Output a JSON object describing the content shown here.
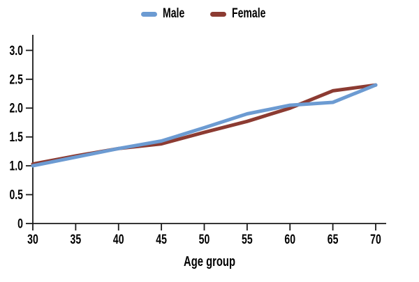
{
  "figure": {
    "background": "#ffffff"
  },
  "chart_data": {
    "type": "line",
    "title": "",
    "xlabel": "Age group",
    "ylabel": "",
    "x": [
      30,
      35,
      40,
      45,
      50,
      55,
      60,
      65,
      70
    ],
    "series": [
      {
        "name": "Male",
        "color": "#6C9BD2",
        "values": [
          1.0,
          1.15,
          1.3,
          1.43,
          1.66,
          1.9,
          2.05,
          2.1,
          2.4
        ]
      },
      {
        "name": "Female",
        "color": "#8C3B32",
        "values": [
          1.03,
          1.17,
          1.3,
          1.38,
          1.58,
          1.77,
          2.0,
          2.3,
          2.4
        ]
      }
    ],
    "xlim": [
      30,
      70
    ],
    "ylim": [
      0,
      3.27
    ],
    "xticks": [
      30,
      35,
      40,
      45,
      50,
      55,
      60,
      65,
      70
    ],
    "xtick_labels": [
      "30",
      "35",
      "40",
      "45",
      "50",
      "55",
      "60",
      "65",
      "70"
    ],
    "yticks": [
      0,
      0.5,
      1,
      1.5,
      2,
      2.5,
      3
    ],
    "ytick_labels": [
      "0",
      "0.5",
      "1.0",
      "1.5",
      "2.0",
      "2.5",
      "3.0"
    ],
    "legend_position": "top-center",
    "grid": false,
    "line_width": 5,
    "axis_color": "#1a1a1a",
    "text_color": "#000000"
  }
}
